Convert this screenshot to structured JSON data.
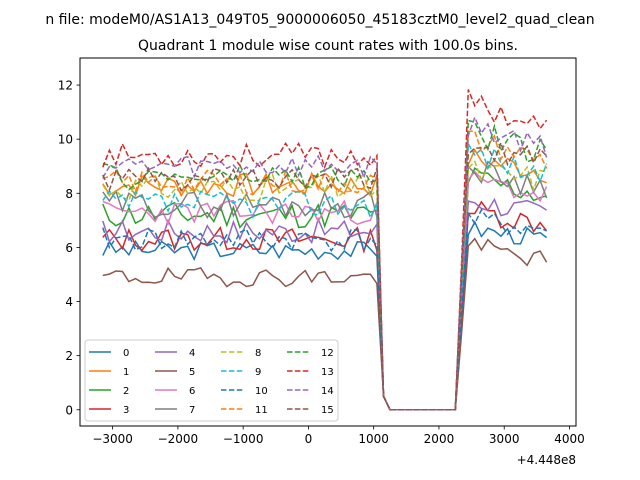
{
  "figure": {
    "suptitle": "n file: modeM0/AS1A13_049T05_9000006050_45183cztM0_level2_quad_clean"
  },
  "chart_data": {
    "type": "line",
    "title": "Quadrant 1 module wise count rates with 100.0s bins.",
    "xlabel": "",
    "ylabel": "",
    "x_offset_label": "+4.448e8",
    "xlim": [
      -3500,
      4100
    ],
    "ylim": [
      -0.6,
      13
    ],
    "x_ticks": [
      -3000,
      -2000,
      -1000,
      0,
      1000,
      2000,
      3000,
      4000
    ],
    "x_tick_labels": [
      "−3000",
      "−2000",
      "−1000",
      "0",
      "1000",
      "2000",
      "3000",
      "4000"
    ],
    "y_ticks": [
      0,
      2,
      4,
      6,
      8,
      10,
      12
    ],
    "y_tick_labels": [
      "0",
      "2",
      "4",
      "6",
      "8",
      "10",
      "12"
    ],
    "grid": false,
    "legend_position": "lower-left",
    "legend_columns": 4,
    "x_start": -3150,
    "x_step": 100,
    "n_points": 69,
    "series": [
      {
        "name": "0",
        "color": "#1f77b4",
        "dash": "solid",
        "base": 5.9,
        "amp": 0.35,
        "high": 6.7,
        "seed": 3
      },
      {
        "name": "1",
        "color": "#ff7f0e",
        "dash": "solid",
        "base": 8.3,
        "amp": 0.45,
        "high": 9.3,
        "seed": 7
      },
      {
        "name": "2",
        "color": "#2ca02c",
        "dash": "solid",
        "base": 7.2,
        "amp": 0.5,
        "high": 8.6,
        "seed": 11
      },
      {
        "name": "3",
        "color": "#d62728",
        "dash": "solid",
        "base": 6.3,
        "amp": 0.45,
        "high": 7.4,
        "seed": 13
      },
      {
        "name": "4",
        "color": "#9467bd",
        "dash": "solid",
        "base": 6.6,
        "amp": 0.45,
        "high": 7.8,
        "seed": 17
      },
      {
        "name": "5",
        "color": "#8c564b",
        "dash": "solid",
        "base": 4.9,
        "amp": 0.35,
        "high": 6.1,
        "seed": 19
      },
      {
        "name": "6",
        "color": "#e377c2",
        "dash": "solid",
        "base": 7.3,
        "amp": 0.45,
        "high": 8.5,
        "seed": 23
      },
      {
        "name": "7",
        "color": "#7f7f7f",
        "dash": "solid",
        "base": 7.6,
        "amp": 0.5,
        "high": 8.9,
        "seed": 29
      },
      {
        "name": "8",
        "color": "#bcbd22",
        "dash": "dashed",
        "base": 8.2,
        "amp": 0.5,
        "high": 8.8,
        "seed": 31
      },
      {
        "name": "9",
        "color": "#17becf",
        "dash": "dashed",
        "base": 7.6,
        "amp": 0.5,
        "high": 9.6,
        "seed": 37
      },
      {
        "name": "10",
        "color": "#1f77b4",
        "dash": "dashed",
        "base": 6.3,
        "amp": 0.45,
        "high": 7.0,
        "seed": 41
      },
      {
        "name": "11",
        "color": "#ff7f0e",
        "dash": "dashed",
        "base": 8.4,
        "amp": 0.45,
        "high": 10.0,
        "seed": 43
      },
      {
        "name": "12",
        "color": "#2ca02c",
        "dash": "dashed",
        "base": 8.6,
        "amp": 0.5,
        "high": 10.3,
        "seed": 47
      },
      {
        "name": "13",
        "color": "#d62728",
        "dash": "dashed",
        "base": 9.4,
        "amp": 0.45,
        "high": 11.4,
        "seed": 53
      },
      {
        "name": "14",
        "color": "#9467bd",
        "dash": "dashed",
        "base": 9.0,
        "amp": 0.45,
        "high": 10.5,
        "seed": 59
      },
      {
        "name": "15",
        "color": "#8c564b",
        "dash": "dashed",
        "base": 8.5,
        "amp": 0.45,
        "high": 9.8,
        "seed": 61
      }
    ]
  }
}
